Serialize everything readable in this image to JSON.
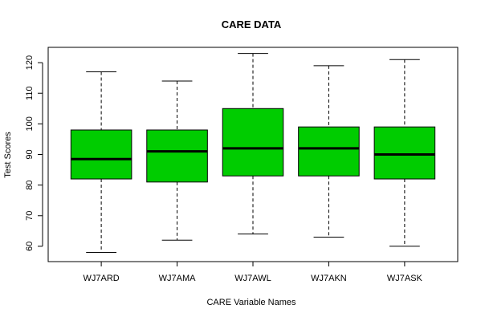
{
  "chart_data": {
    "type": "boxplot",
    "title": "CARE DATA",
    "xlabel": "CARE Variable Names",
    "ylabel": "Test Scores",
    "ylim": [
      55,
      125
    ],
    "yticks": [
      60,
      70,
      80,
      90,
      100,
      110,
      120
    ],
    "grid": false,
    "legend": "none",
    "box_color": "#00cc00",
    "categories": [
      "WJ7ARD",
      "WJ7AMA",
      "WJ7AWL",
      "WJ7AKN",
      "WJ7ASK"
    ],
    "boxes": [
      {
        "min": 58,
        "q1": 82,
        "median": 88.5,
        "q3": 98,
        "max": 117
      },
      {
        "min": 62,
        "q1": 81,
        "median": 91,
        "q3": 98,
        "max": 114
      },
      {
        "min": 64,
        "q1": 83,
        "median": 92,
        "q3": 105,
        "max": 123
      },
      {
        "min": 63,
        "q1": 83,
        "median": 92,
        "q3": 99,
        "max": 119
      },
      {
        "min": 60,
        "q1": 82,
        "median": 90,
        "q3": 99,
        "max": 121
      }
    ]
  }
}
